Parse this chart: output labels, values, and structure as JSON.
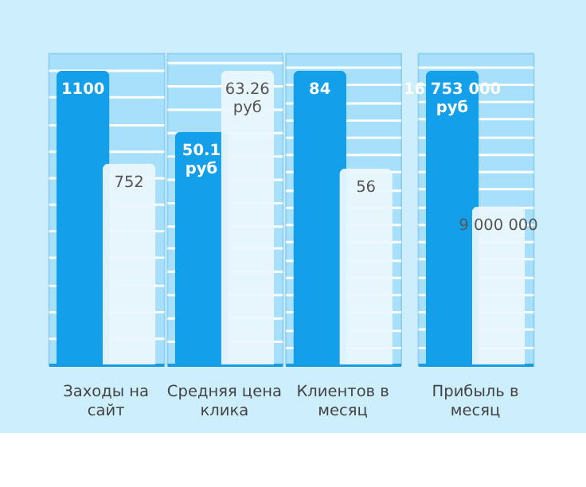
{
  "chart_data": [
    {
      "type": "bar",
      "categories": [
        "Заходы на сайт"
      ],
      "grid": "y",
      "series": [
        {
          "color": "#149fea",
          "values": [
            1100
          ],
          "value_labels": [
            "1100"
          ]
        },
        {
          "color": "#eaf7fd",
          "values": [
            752
          ],
          "value_labels": [
            "752"
          ]
        }
      ]
    },
    {
      "type": "bar",
      "categories": [
        "Средняя цена клика"
      ],
      "grid": "y",
      "series": [
        {
          "color": "#149fea",
          "values": [
            50.1
          ],
          "value_labels": [
            "50.1 руб"
          ]
        },
        {
          "color": "#eaf7fd",
          "values": [
            63.26
          ],
          "value_labels": [
            "63.26 руб"
          ]
        }
      ]
    },
    {
      "type": "bar",
      "categories": [
        "Клиентов в месяц"
      ],
      "grid": "y",
      "series": [
        {
          "color": "#149fea",
          "values": [
            84
          ],
          "value_labels": [
            "84"
          ]
        },
        {
          "color": "#eaf7fd",
          "values": [
            56
          ],
          "value_labels": [
            "56"
          ]
        }
      ]
    },
    {
      "type": "bar",
      "categories": [
        "Прибыль в месяц"
      ],
      "grid": "y",
      "series": [
        {
          "color": "#149fea",
          "values": [
            16753000
          ],
          "value_labels": [
            "16 753 000 руб"
          ]
        },
        {
          "color": "#eaf7fd",
          "values": [
            9000000
          ],
          "value_labels": [
            "9 000 000"
          ]
        }
      ]
    }
  ]
}
